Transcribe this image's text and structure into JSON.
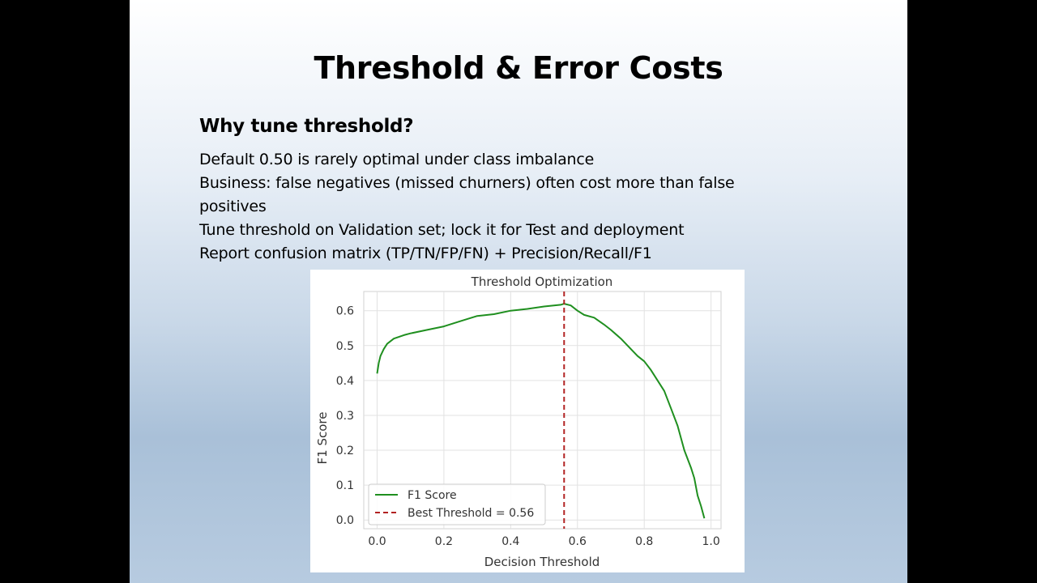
{
  "slide": {
    "title": "Threshold & Error Costs",
    "subheading": "Why tune threshold?",
    "bullets": [
      "Default 0.50 is rarely optimal under class imbalance",
      "Business: false negatives (missed churners) often cost more than false positives",
      "Tune threshold on Validation set; lock it for Test and deployment",
      "Report confusion matrix (TP/TN/FP/FN) + Precision/Recall/F1"
    ]
  },
  "chart_data": {
    "type": "line",
    "title": "Threshold Optimization",
    "xlabel": "Decision Threshold",
    "ylabel": "F1 Score",
    "xlim": [
      -0.04,
      1.03
    ],
    "ylim": [
      -0.025,
      0.655
    ],
    "xticks": [
      "0.0",
      "0.2",
      "0.4",
      "0.6",
      "0.8",
      "1.0"
    ],
    "yticks": [
      "0.0",
      "0.1",
      "0.2",
      "0.3",
      "0.4",
      "0.5",
      "0.6"
    ],
    "grid": true,
    "legend_position": "lower-left",
    "series": [
      {
        "name": "F1 Score",
        "color": "#1f8f1f",
        "x": [
          0.0,
          0.005,
          0.01,
          0.02,
          0.03,
          0.05,
          0.08,
          0.1,
          0.15,
          0.2,
          0.25,
          0.3,
          0.35,
          0.4,
          0.45,
          0.5,
          0.55,
          0.56,
          0.58,
          0.6,
          0.62,
          0.65,
          0.68,
          0.7,
          0.73,
          0.76,
          0.78,
          0.8,
          0.82,
          0.84,
          0.86,
          0.88,
          0.9,
          0.92,
          0.94,
          0.95,
          0.96,
          0.97,
          0.98
        ],
        "values": [
          0.42,
          0.45,
          0.47,
          0.49,
          0.505,
          0.52,
          0.53,
          0.535,
          0.545,
          0.555,
          0.57,
          0.585,
          0.59,
          0.6,
          0.605,
          0.612,
          0.617,
          0.62,
          0.615,
          0.6,
          0.588,
          0.58,
          0.56,
          0.545,
          0.52,
          0.49,
          0.47,
          0.455,
          0.43,
          0.4,
          0.37,
          0.32,
          0.27,
          0.2,
          0.15,
          0.12,
          0.07,
          0.04,
          0.005
        ]
      }
    ],
    "reference_line": {
      "name": "Best Threshold = 0.56",
      "x": 0.56,
      "color": "#b22222",
      "style": "dashed"
    }
  }
}
